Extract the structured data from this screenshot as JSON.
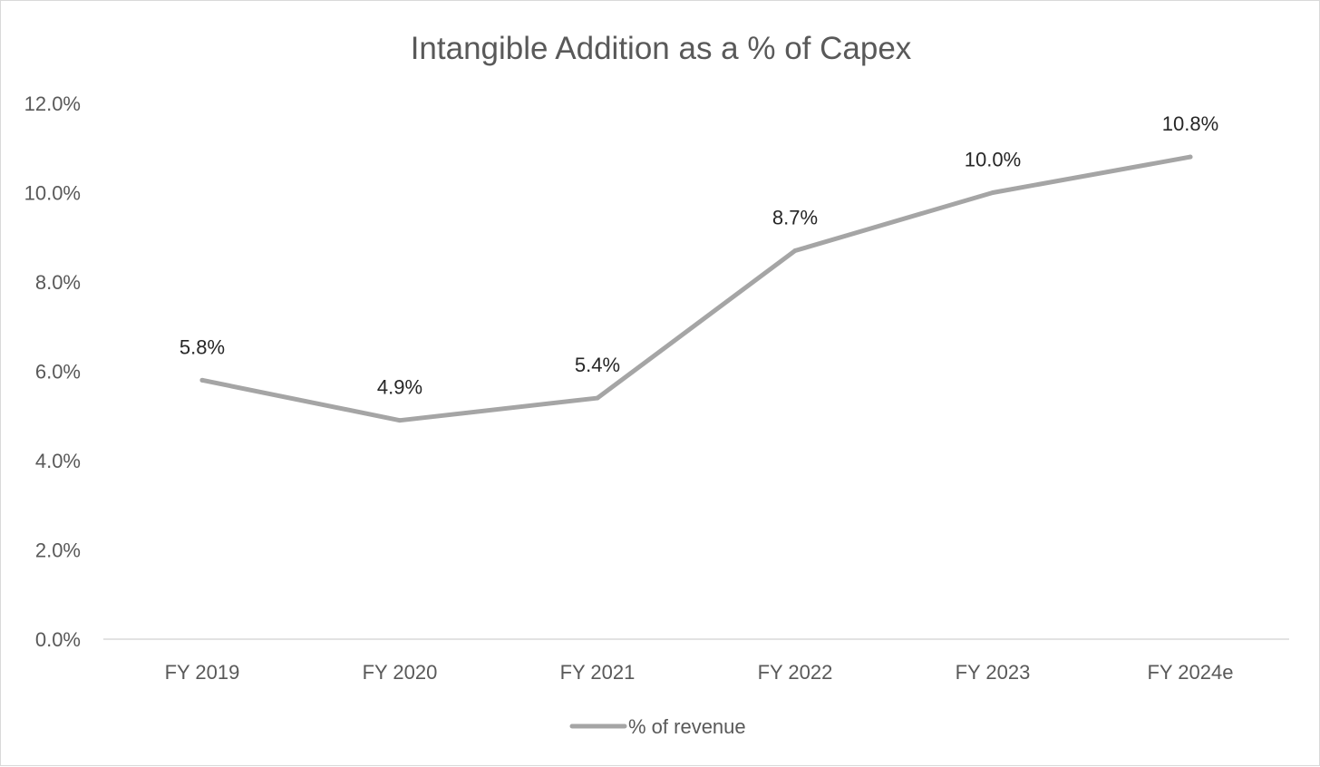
{
  "chart_data": {
    "type": "line",
    "title": "Intangible Addition as a % of Capex",
    "xlabel": "",
    "ylabel": "",
    "categories": [
      "FY 2019",
      "FY 2020",
      "FY 2021",
      "FY 2022",
      "FY 2023",
      "FY 2024e"
    ],
    "series": [
      {
        "name": "% of revenue",
        "values": [
          5.8,
          4.9,
          5.4,
          8.7,
          10.0,
          10.8
        ],
        "data_labels": [
          "5.8%",
          "4.9%",
          "5.4%",
          "8.7%",
          "10.0%",
          "10.8%"
        ],
        "color": "#a5a5a5"
      }
    ],
    "ylim": [
      0,
      12
    ],
    "y_ticks": [
      0,
      2,
      4,
      6,
      8,
      10,
      12
    ],
    "y_tick_labels": [
      "0.0%",
      "2.0%",
      "4.0%",
      "6.0%",
      "8.0%",
      "10.0%",
      "12.0%"
    ],
    "grid": false,
    "legend": "bottom"
  },
  "colors": {
    "series_line": "#a5a5a5",
    "axis_line": "#d9d9d9",
    "text_primary": "#595959",
    "data_label_text": "#262626"
  }
}
